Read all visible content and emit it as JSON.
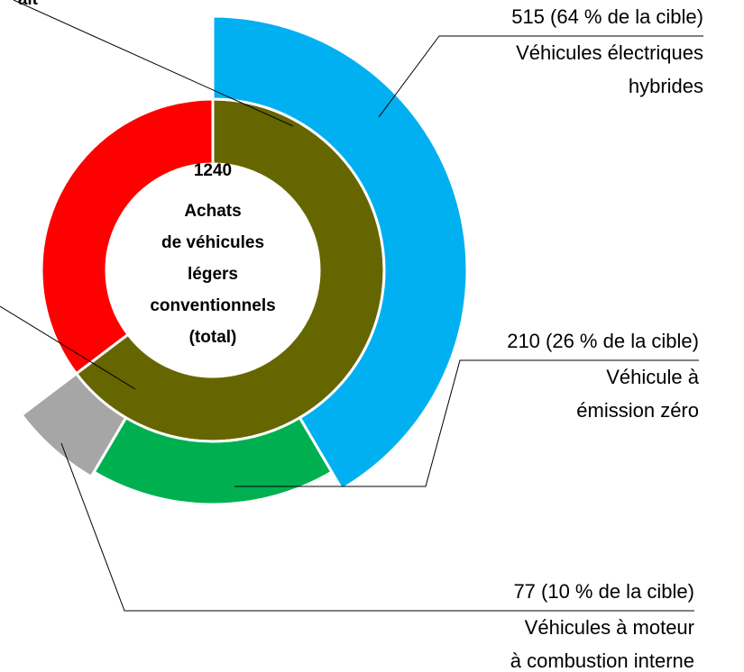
{
  "chart_data": {
    "type": "donut",
    "center_value": 1240,
    "center_label": [
      "Achats",
      "de véhicules",
      "légers",
      "conventionnels",
      "(total)"
    ],
    "inner": {
      "colors": [
        "#666600",
        "#ff0000"
      ],
      "values": [
        802,
        438
      ],
      "labels": [
        null,
        "ait"
      ]
    },
    "series": [
      {
        "name": [
          "Véhicules électriques",
          "hybrides"
        ],
        "color": "#00b0f0",
        "value": 515,
        "value_label": "515 (64 % de la cible)"
      },
      {
        "name": [
          "Véhicule à",
          "émission zéro"
        ],
        "color": "#00b050",
        "value": 210,
        "value_label": "210 (26 % de la cible)"
      },
      {
        "name": [
          "Véhicules à moteur",
          "à combustion interne"
        ],
        "color": "#a6a6a6",
        "value": 77,
        "value_label": "77 (10 % de la cible)"
      }
    ]
  }
}
